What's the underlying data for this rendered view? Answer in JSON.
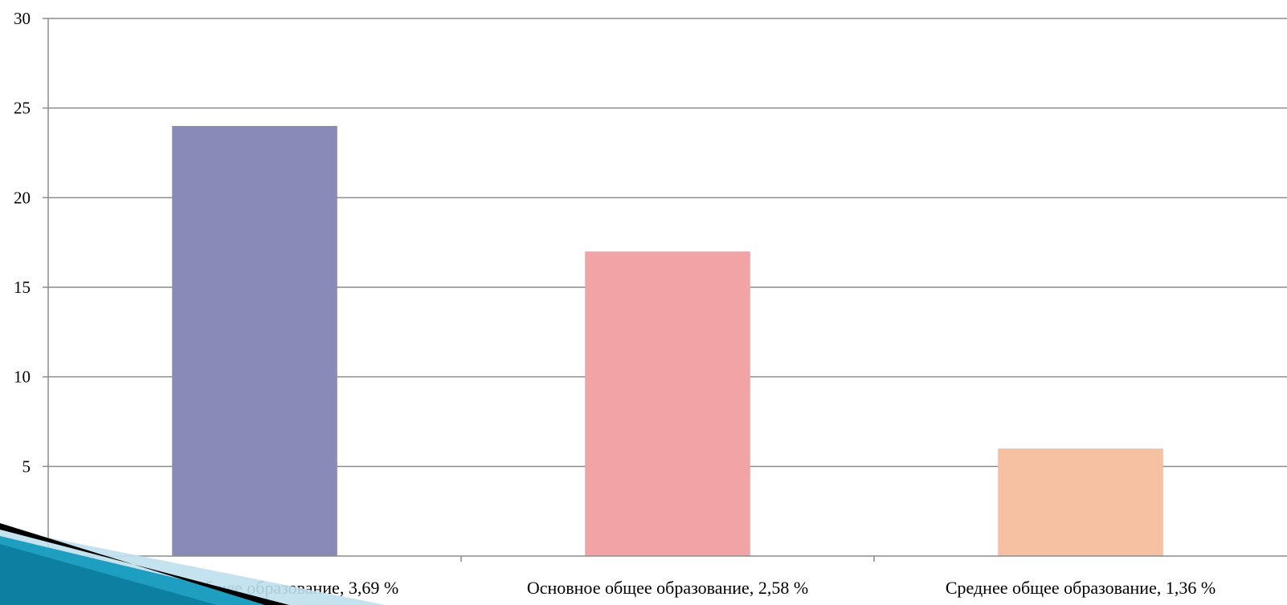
{
  "chart_data": {
    "type": "bar",
    "categories": [
      "Начальное общее образование, 3,69 %",
      "Основное общее образование, 2,58 %",
      "Среднее общее образование, 1,36 %"
    ],
    "values": [
      24,
      17,
      6
    ],
    "colors": [
      "#878bb6",
      "#f2a3a6",
      "#f6c1a2"
    ],
    "ylim": [
      0,
      30
    ],
    "yticks": [
      0,
      5,
      10,
      15,
      20,
      25,
      30
    ],
    "grid": true,
    "title": "",
    "xlabel": "",
    "ylabel": ""
  },
  "decoration": {
    "corner_ribbon_colors": [
      "#0d7fa0",
      "#1e9fc2",
      "#bfe0ec"
    ]
  }
}
